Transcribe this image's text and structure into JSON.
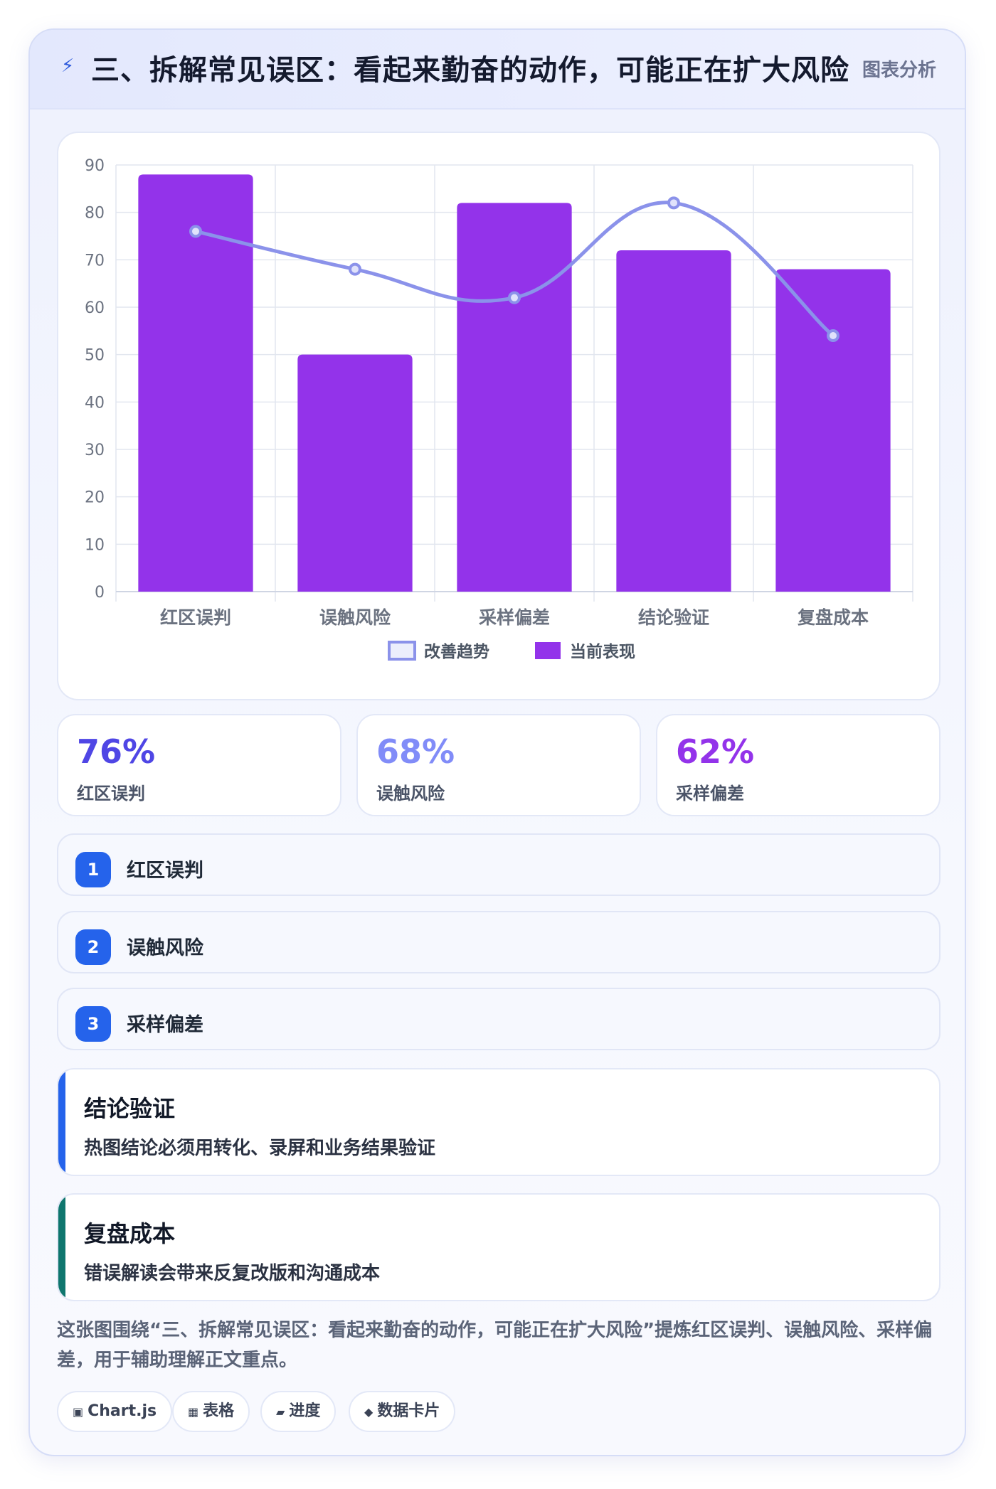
{
  "header": {
    "icon": "lightning-icon",
    "title": "三、拆解常见误区：看起来勤奋的动作，可能正在扩大风险",
    "tag": "图表分析"
  },
  "chart_data": {
    "type": "bar",
    "categories": [
      "红区误判",
      "误触风险",
      "采样偏差",
      "结论验证",
      "复盘成本"
    ],
    "series": [
      {
        "name": "改善趋势",
        "type": "line",
        "values": [
          76,
          68,
          62,
          82,
          54
        ],
        "color": "#8b92ea"
      },
      {
        "name": "当前表现",
        "type": "bar",
        "values": [
          88,
          50,
          82,
          72,
          68
        ],
        "color": "#9333ea"
      }
    ],
    "ylim": [
      0,
      90
    ],
    "yticks": [
      0,
      10,
      20,
      30,
      40,
      50,
      60,
      70,
      80,
      90
    ],
    "grid": true,
    "legend_position": "bottom"
  },
  "stats": [
    {
      "value": "76%",
      "label": "红区误判",
      "color": "#4f46e5"
    },
    {
      "value": "68%",
      "label": "误触风险",
      "color": "#818cf8"
    },
    {
      "value": "62%",
      "label": "采样偏差",
      "color": "#9333ea"
    }
  ],
  "steps": [
    {
      "num": "1",
      "label": "红区误判"
    },
    {
      "num": "2",
      "label": "误触风险"
    },
    {
      "num": "3",
      "label": "采样偏差"
    }
  ],
  "notes": [
    {
      "title": "结论验证",
      "text": "热图结论必须用转化、录屏和业务结果验证",
      "accent": "#2563eb"
    },
    {
      "title": "复盘成本",
      "text": "错误解读会带来反复改版和沟通成本",
      "accent": "#0f766e"
    }
  ],
  "summary": "这张图围绕“三、拆解常见误区：看起来勤奋的动作，可能正在扩大风险”提炼红区误判、误触风险、采样偏差，用于辅助理解正文重点。",
  "tags": [
    {
      "icon": "▣",
      "label": "Chart.js"
    },
    {
      "icon": "▦",
      "label": "表格"
    },
    {
      "icon": "▰",
      "label": "进度"
    },
    {
      "icon": "◆",
      "label": "数据卡片"
    }
  ]
}
